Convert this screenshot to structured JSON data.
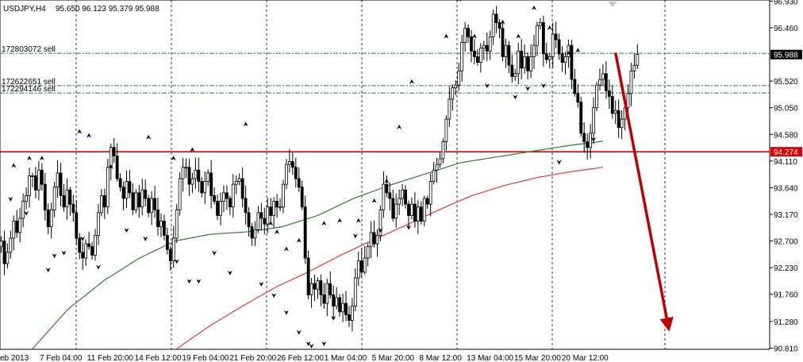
{
  "header": {
    "symbol": "USDJPY,H4",
    "ohlc": "95.650 96.123 95.379 95.988"
  },
  "chart_data": {
    "type": "candlestick",
    "x_tick_labels": [
      "eb 2013",
      "7 Feb 04:00",
      "11 Feb 20:00",
      "14 Feb 12:00",
      "19 Feb 04:00",
      "21 Feb 20:00",
      "26 Feb 12:00",
      "1 Mar 04:00",
      "5 Mar 20:00",
      "8 Mar 12:00",
      "13 Mar 04:00",
      "15 Mar 20:00",
      "20 Mar 12:00"
    ],
    "y_ticks": [
      96.93,
      96.46,
      95.99,
      95.52,
      95.05,
      94.58,
      94.11,
      93.64,
      93.17,
      92.7,
      92.23,
      91.76,
      91.28,
      90.81
    ],
    "ylim": [
      90.79,
      96.95
    ],
    "grid": true,
    "current_price": "95.988",
    "support_level": {
      "price": 94.274,
      "label": "94.274",
      "color": "#e00000"
    },
    "order_lines": [
      {
        "label": "172803072 sell",
        "price": 96.01
      },
      {
        "label": "172622651 sell",
        "price": 95.44
      },
      {
        "label": "172294146 sell",
        "price": 95.31
      }
    ],
    "close": [
      92.7,
      92.3,
      92.5,
      92.75,
      93.05,
      92.85,
      93.1,
      93.4,
      93.5,
      93.85,
      93.85,
      93.6,
      93.95,
      93.7,
      93.25,
      92.95,
      93.25,
      93.65,
      93.9,
      93.5,
      93.3,
      93.6,
      93.35,
      93.2,
      92.75,
      92.5,
      92.4,
      92.65,
      92.6,
      92.45,
      92.8,
      93.2,
      93.5,
      93.3,
      94.0,
      94.35,
      94.2,
      93.8,
      93.65,
      93.45,
      93.75,
      93.55,
      93.25,
      93.55,
      93.3,
      93.6,
      93.45,
      93.2,
      93.45,
      93.25,
      92.95,
      93.05,
      92.8,
      92.55,
      92.35,
      92.75,
      93.25,
      93.8,
      94.0,
      94.0,
      93.7,
      93.8,
      93.95,
      93.75,
      93.55,
      93.75,
      93.9,
      93.5,
      93.4,
      93.15,
      93.4,
      93.55,
      93.45,
      93.3,
      93.7,
      93.75,
      93.8,
      93.45,
      93.2,
      92.95,
      92.75,
      92.9,
      93.2,
      93.1,
      93.0,
      93.3,
      93.15,
      93.4,
      93.3,
      93.3,
      93.7,
      94.05,
      94.1,
      94.0,
      93.8,
      93.65,
      93.3,
      92.4,
      91.75,
      91.95,
      91.85,
      92.0,
      91.75,
      91.6,
      91.95,
      91.75,
      91.55,
      91.7,
      91.45,
      91.6,
      91.4,
      91.3,
      91.55,
      92.05,
      92.35,
      92.15,
      92.4,
      92.6,
      92.85,
      92.65,
      92.8,
      93.25,
      93.7,
      93.55,
      93.45,
      93.1,
      93.35,
      93.45,
      93.6,
      93.35,
      93.15,
      93.35,
      93.05,
      93.3,
      93.05,
      93.45,
      93.35,
      93.75,
      93.95,
      94.05,
      94.15,
      94.45,
      94.85,
      95.2,
      95.4,
      95.45,
      95.7,
      96.2,
      96.45,
      96.3,
      96.05,
      95.95,
      95.85,
      96.1,
      96.15,
      96.05,
      96.3,
      96.7,
      96.55,
      96.45,
      95.95,
      96.15,
      95.8,
      95.6,
      95.65,
      96.05,
      95.75,
      95.95,
      95.7,
      95.95,
      96.15,
      96.5,
      96.55,
      96.0,
      95.9,
      95.95,
      96.35,
      96.25,
      96.0,
      95.85,
      95.95,
      96.15,
      95.55,
      95.3,
      95.15,
      94.6,
      94.45,
      94.35,
      94.6,
      95.05,
      95.45,
      95.55,
      95.65,
      95.35,
      95.25,
      94.95,
      95.0,
      94.7,
      94.85,
      95.05,
      95.3,
      95.7,
      95.8,
      95.99
    ],
    "ma_green": {
      "start_index": 10,
      "values": [
        90.8,
        91.5,
        92.0,
        92.4,
        92.7,
        92.82,
        92.86,
        92.95,
        93.15,
        93.45,
        93.68,
        93.88,
        94.08,
        94.18,
        94.28,
        94.38,
        94.46
      ]
    },
    "ma_red": {
      "start_index": 56,
      "values": [
        90.8,
        91.2,
        91.55,
        91.88,
        92.15,
        92.45,
        92.72,
        92.98,
        93.25,
        93.5,
        93.68,
        93.82,
        93.92,
        94.0
      ]
    },
    "fractals_up": [
      {
        "i": 4,
        "p": 93.92
      },
      {
        "i": 9,
        "p": 94.05
      },
      {
        "i": 13,
        "p": 94.05
      },
      {
        "i": 25,
        "p": 94.52
      },
      {
        "i": 28,
        "p": 94.45
      },
      {
        "i": 35,
        "p": 93.9
      },
      {
        "i": 47,
        "p": 94.42
      },
      {
        "i": 55,
        "p": 94.05
      },
      {
        "i": 61,
        "p": 94.2
      },
      {
        "i": 78,
        "p": 94.65
      },
      {
        "i": 86,
        "p": 92.9
      },
      {
        "i": 88,
        "p": 92.75
      },
      {
        "i": 91,
        "p": 92.45
      },
      {
        "i": 95,
        "p": 92.6
      },
      {
        "i": 103,
        "p": 92.9
      },
      {
        "i": 108,
        "p": 92.95
      },
      {
        "i": 114,
        "p": 92.95
      },
      {
        "i": 119,
        "p": 93.3
      },
      {
        "i": 123,
        "p": 93.65
      },
      {
        "i": 127,
        "p": 94.6
      },
      {
        "i": 131,
        "p": 95.4
      },
      {
        "i": 142,
        "p": 96.2
      },
      {
        "i": 146,
        "p": 96.85
      },
      {
        "i": 151,
        "p": 96.2
      },
      {
        "i": 160,
        "p": 96.45
      },
      {
        "i": 165,
        "p": 96.2
      },
      {
        "i": 170,
        "p": 96.7
      },
      {
        "i": 175,
        "p": 96.35
      },
      {
        "i": 181,
        "p": 95.9
      },
      {
        "i": 184,
        "p": 95.95
      }
    ],
    "fractals_down": [
      {
        "i": 3,
        "p": 93.55
      },
      {
        "i": 8,
        "p": 93.3
      },
      {
        "i": 15,
        "p": 92.3
      },
      {
        "i": 17,
        "p": 92.55
      },
      {
        "i": 20,
        "p": 92.6
      },
      {
        "i": 26,
        "p": 92.85
      },
      {
        "i": 31,
        "p": 92.35
      },
      {
        "i": 40,
        "p": 93.0
      },
      {
        "i": 46,
        "p": 92.85
      },
      {
        "i": 50,
        "p": 93.1
      },
      {
        "i": 56,
        "p": 92.45
      },
      {
        "i": 60,
        "p": 92.1
      },
      {
        "i": 63,
        "p": 92.1
      },
      {
        "i": 68,
        "p": 92.6
      },
      {
        "i": 73,
        "p": 92.25
      },
      {
        "i": 83,
        "p": 92.05
      },
      {
        "i": 87,
        "p": 91.85
      },
      {
        "i": 91,
        "p": 91.55
      },
      {
        "i": 95,
        "p": 91.2
      },
      {
        "i": 98,
        "p": 91.0
      },
      {
        "i": 99,
        "p": 90.8
      },
      {
        "i": 103,
        "p": 91.0
      },
      {
        "i": 106,
        "p": 91.45
      },
      {
        "i": 113,
        "p": 92.9
      },
      {
        "i": 121,
        "p": 93.0
      },
      {
        "i": 130,
        "p": 93.05
      },
      {
        "i": 155,
        "p": 95.55
      },
      {
        "i": 164,
        "p": 95.35
      },
      {
        "i": 168,
        "p": 95.5
      },
      {
        "i": 173,
        "p": 95.55
      },
      {
        "i": 178,
        "p": 94.2
      },
      {
        "i": 185,
        "p": 94.85
      },
      {
        "i": 189,
        "p": 94.6
      }
    ],
    "forecast_arrow": {
      "from": {
        "i": 196,
        "p": 96.02
      },
      "to": {
        "i": 213,
        "p": 91.15
      },
      "color": "#c00000"
    }
  }
}
